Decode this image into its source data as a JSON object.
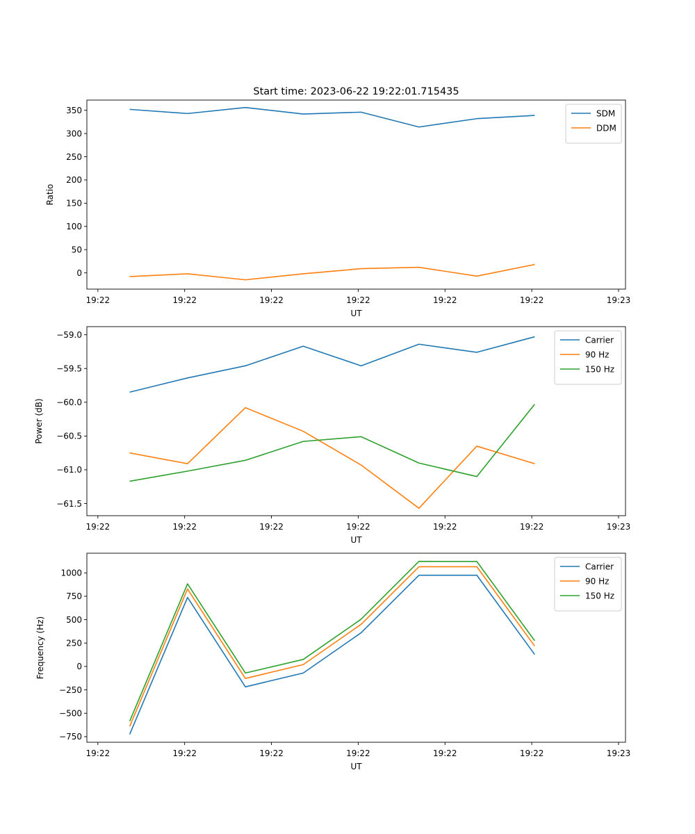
{
  "figure": {
    "title": "Start time: 2023-06-22 19:22:01.715435"
  },
  "chart_data": [
    {
      "type": "line",
      "ylabel": "Ratio",
      "xlabel": "UT",
      "xlim": [
        -0.19,
        9.12
      ],
      "ylim": [
        -35,
        372
      ],
      "x": [
        0.55,
        1.55,
        2.55,
        3.55,
        4.55,
        5.55,
        6.55,
        7.55
      ],
      "x_ticks": [
        0,
        1.5,
        3,
        4.5,
        6,
        7.5,
        9
      ],
      "x_tick_labels": [
        "19:22",
        "19:22",
        "19:22",
        "19:22",
        "19:22",
        "19:22",
        "19:23"
      ],
      "y_ticks": [
        0,
        50,
        100,
        150,
        200,
        250,
        300,
        350
      ],
      "y_tick_labels": [
        "0",
        "50",
        "100",
        "150",
        "200",
        "250",
        "300",
        "350"
      ],
      "legend_loc": "upper right",
      "series": [
        {
          "name": "SDM",
          "color": "#1f77b4",
          "values": [
            352,
            343,
            356,
            342,
            346,
            314,
            332,
            339
          ]
        },
        {
          "name": "DDM",
          "color": "#ff7f0e",
          "values": [
            -8,
            -2,
            -15,
            -2,
            9,
            12,
            -7,
            18
          ]
        }
      ]
    },
    {
      "type": "line",
      "ylabel": "Power (dB)",
      "xlabel": "UT",
      "xlim": [
        -0.19,
        9.12
      ],
      "ylim": [
        -61.68,
        -58.88
      ],
      "x": [
        0.55,
        1.55,
        2.55,
        3.55,
        4.55,
        5.55,
        6.55,
        7.55
      ],
      "x_ticks": [
        0,
        1.5,
        3,
        4.5,
        6,
        7.5,
        9
      ],
      "x_tick_labels": [
        "19:22",
        "19:22",
        "19:22",
        "19:22",
        "19:22",
        "19:22",
        "19:23"
      ],
      "y_ticks": [
        -61.5,
        -61.0,
        -60.5,
        -60.0,
        -59.5,
        -59.0
      ],
      "y_tick_labels": [
        "−61.5",
        "−61.0",
        "−60.5",
        "−60.0",
        "−59.5",
        "−59.0"
      ],
      "legend_loc": "upper right",
      "series": [
        {
          "name": "Carrier",
          "color": "#1f77b4",
          "values": [
            -59.85,
            -59.64,
            -59.46,
            -59.17,
            -59.46,
            -59.14,
            -59.26,
            -59.03
          ]
        },
        {
          "name": "90 Hz",
          "color": "#ff7f0e",
          "values": [
            -60.75,
            -60.91,
            -60.08,
            -60.43,
            -60.93,
            -61.57,
            -60.65,
            -60.91
          ]
        },
        {
          "name": "150 Hz",
          "color": "#2ca02c",
          "values": [
            -61.17,
            -61.02,
            -60.86,
            -60.58,
            -60.51,
            -60.9,
            -61.1,
            -60.03
          ]
        }
      ]
    },
    {
      "type": "line",
      "ylabel": "Frequency (Hz)",
      "xlabel": "UT",
      "xlim": [
        -0.19,
        9.12
      ],
      "ylim": [
        -810,
        1210
      ],
      "x": [
        0.55,
        1.55,
        2.55,
        3.55,
        4.55,
        5.55,
        6.55,
        7.55
      ],
      "x_ticks": [
        0,
        1.5,
        3,
        4.5,
        6,
        7.5,
        9
      ],
      "x_tick_labels": [
        "19:22",
        "19:22",
        "19:22",
        "19:22",
        "19:22",
        "19:22",
        "19:23"
      ],
      "y_ticks": [
        -750,
        -500,
        -250,
        0,
        250,
        500,
        750,
        1000
      ],
      "y_tick_labels": [
        "−750",
        "−500",
        "−250",
        "0",
        "250",
        "500",
        "750",
        "1000"
      ],
      "legend_loc": "upper right",
      "series": [
        {
          "name": "Carrier",
          "color": "#1f77b4",
          "values": [
            -725,
            738,
            -218,
            -70,
            360,
            975,
            975,
            128
          ]
        },
        {
          "name": "90 Hz",
          "color": "#ff7f0e",
          "values": [
            -640,
            828,
            -128,
            20,
            450,
            1066,
            1066,
            218
          ]
        },
        {
          "name": "150 Hz",
          "color": "#2ca02c",
          "values": [
            -585,
            883,
            -70,
            75,
            505,
            1123,
            1122,
            275
          ]
        }
      ]
    }
  ]
}
